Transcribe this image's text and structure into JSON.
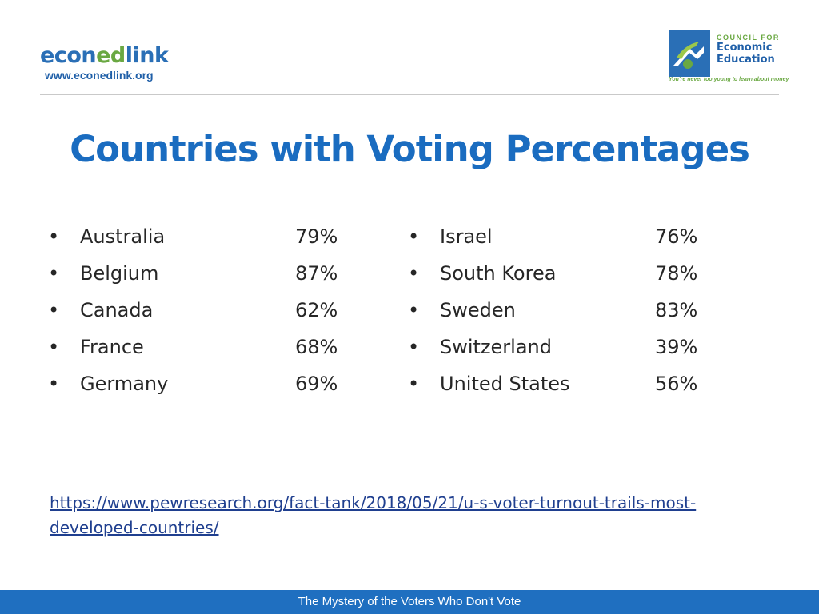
{
  "header": {
    "econedlink": {
      "brand_part1": "econ",
      "brand_part2": "ed",
      "brand_part3": "link",
      "url": "www.econedlink.org",
      "colors": {
        "blue": "#2a6fb6",
        "green": "#6aa842"
      }
    },
    "cee": {
      "line1": "COUNCIL FOR",
      "line2": "Economic",
      "line3": "Education",
      "tagline": "You're never too young to learn about money",
      "icon": "cee-logo-icon"
    }
  },
  "title": "Countries with Voting Percentages",
  "list_left": [
    {
      "bullet": "•",
      "country": "Australia",
      "percent": "79%"
    },
    {
      "bullet": "•",
      "country": "Belgium",
      "percent": "87%"
    },
    {
      "bullet": "•",
      "country": "Canada",
      "percent": "62%"
    },
    {
      "bullet": "•",
      "country": "France",
      "percent": "68%"
    },
    {
      "bullet": "•",
      "country": "Germany",
      "percent": "69%"
    }
  ],
  "list_right": [
    {
      "bullet": "•",
      "country": "Israel",
      "percent": "76%"
    },
    {
      "bullet": "•",
      "country": "South Korea",
      "percent": "78%"
    },
    {
      "bullet": "•",
      "country": "Sweden",
      "percent": "83%"
    },
    {
      "bullet": "•",
      "country": "Switzerland",
      "percent": "39%"
    },
    {
      "bullet": "•",
      "country": "United States",
      "percent": "56%"
    }
  ],
  "source_link": "https://www.pewresearch.org/fact-tank/2018/05/21/u-s-voter-turnout-trails-most-developed-countries/",
  "footer": "The Mystery of the Voters Who Don't Vote",
  "colors": {
    "title": "#1a6cc0",
    "footer_bg": "#1f6fc0",
    "link": "#1f3f8f"
  }
}
